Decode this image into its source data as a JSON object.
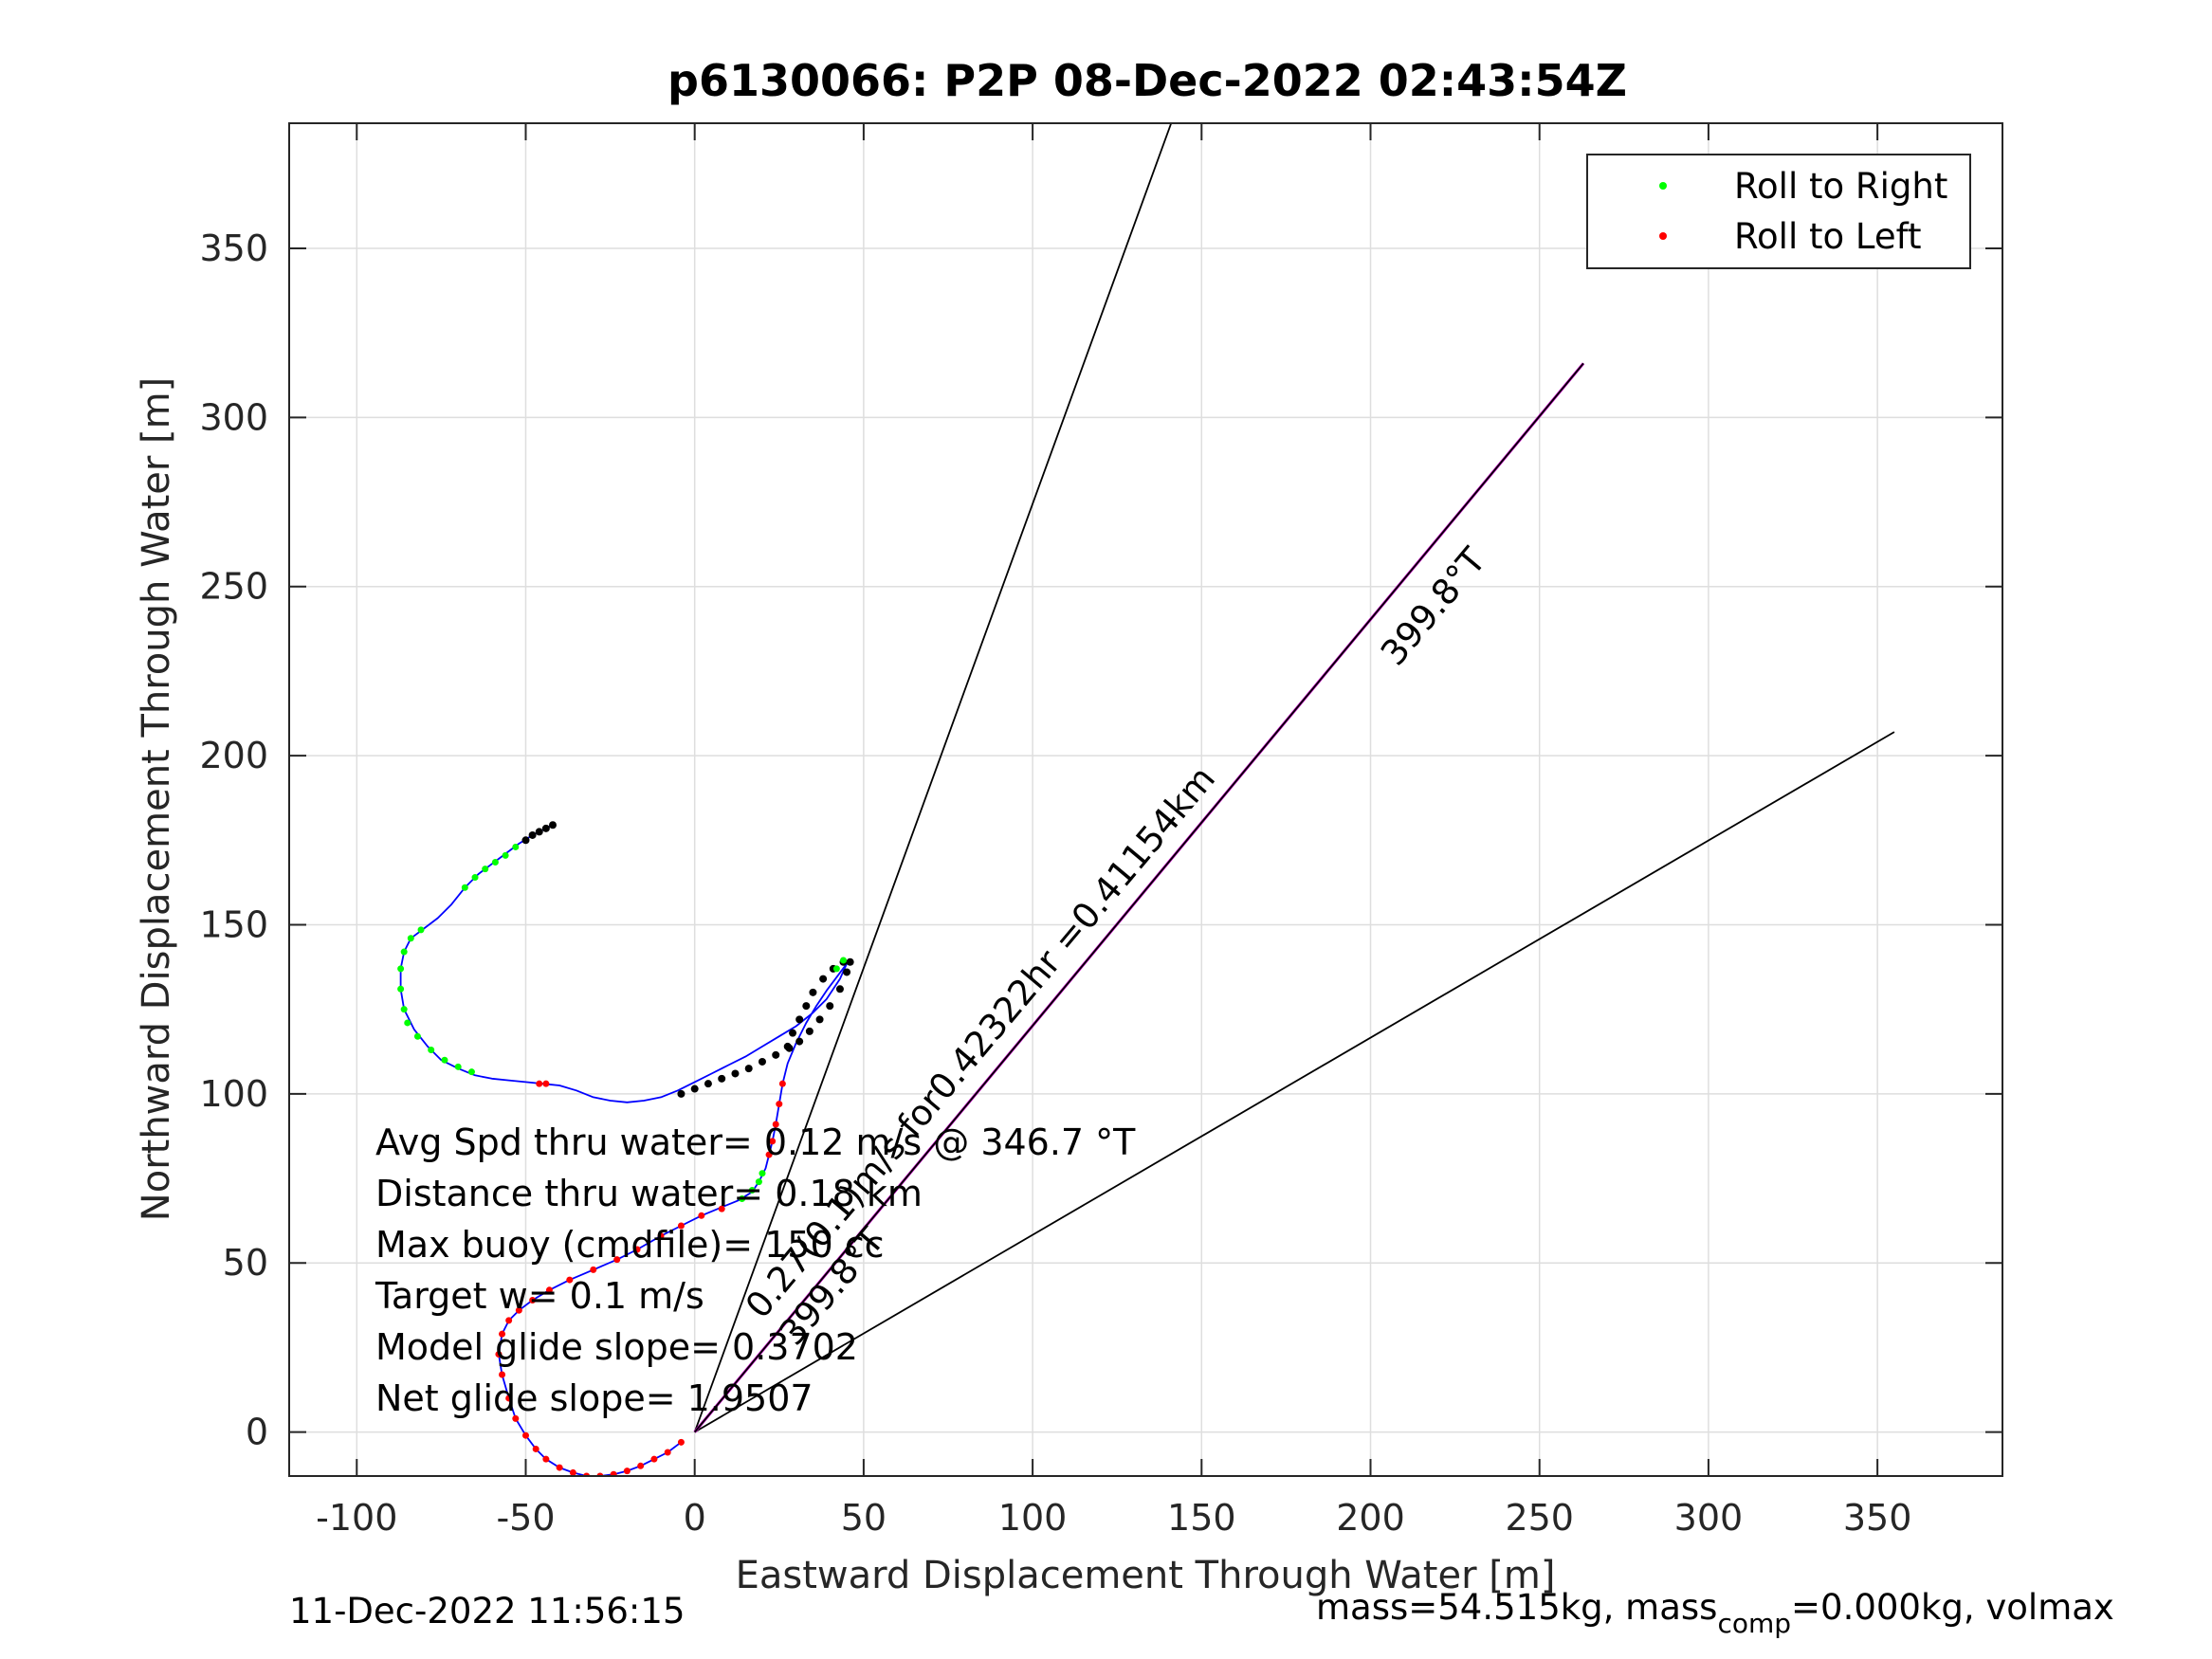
{
  "chart_data": {
    "type": "scatter",
    "title": "p6130066: P2P 08-Dec-2022 02:43:54Z",
    "xlabel": "Eastward Displacement Through Water [m]",
    "ylabel": "Northward Displacement Through Water [m]",
    "xlim": [
      -120,
      387
    ],
    "ylim": [
      -13,
      387
    ],
    "xticks": [
      -100,
      -50,
      0,
      50,
      100,
      150,
      200,
      250,
      300,
      350
    ],
    "yticks": [
      0,
      50,
      100,
      150,
      200,
      250,
      300,
      350
    ],
    "grid": true,
    "legend_position": "top-right",
    "legend": [
      {
        "label": "Roll to Right",
        "color": "#00ff00"
      },
      {
        "label": "Roll to Left",
        "color": "#ff0000"
      }
    ],
    "track_color": "#0000ff",
    "track": [
      [
        -4,
        -3
      ],
      [
        -8,
        -6
      ],
      [
        -12,
        -8
      ],
      [
        -16,
        -10
      ],
      [
        -20,
        -11.5
      ],
      [
        -24,
        -12.5
      ],
      [
        -28,
        -13
      ],
      [
        -32,
        -13
      ],
      [
        -36,
        -12
      ],
      [
        -40,
        -10.5
      ],
      [
        -44,
        -8
      ],
      [
        -47,
        -5
      ],
      [
        -50,
        -1
      ],
      [
        -53,
        4
      ],
      [
        -55,
        10
      ],
      [
        -57,
        17
      ],
      [
        -58,
        23
      ],
      [
        -57,
        29
      ],
      [
        -55,
        33
      ],
      [
        -52,
        36
      ],
      [
        -48,
        39
      ],
      [
        -43,
        42
      ],
      [
        -37,
        45
      ],
      [
        -30,
        48
      ],
      [
        -23,
        51
      ],
      [
        -17,
        54
      ],
      [
        -10,
        58
      ],
      [
        -4,
        61
      ],
      [
        2,
        64
      ],
      [
        8,
        66.5
      ],
      [
        13,
        68.5
      ],
      [
        17,
        71
      ],
      [
        19,
        74
      ],
      [
        21,
        78
      ],
      [
        22,
        82
      ],
      [
        23,
        86
      ],
      [
        24,
        91
      ],
      [
        25,
        97
      ],
      [
        26,
        103
      ],
      [
        27.5,
        109
      ],
      [
        30,
        115
      ],
      [
        33,
        121
      ],
      [
        36,
        126
      ],
      [
        39,
        130.5
      ],
      [
        42,
        134.5
      ],
      [
        45,
        138.5
      ],
      [
        43,
        134
      ],
      [
        39,
        128
      ],
      [
        35,
        124
      ],
      [
        30,
        120
      ],
      [
        25,
        117
      ],
      [
        20,
        114
      ],
      [
        15,
        111
      ],
      [
        10,
        108.5
      ],
      [
        5,
        106
      ],
      [
        0,
        103.5
      ],
      [
        -5,
        101
      ],
      [
        -10,
        99
      ],
      [
        -15,
        98
      ],
      [
        -20,
        97.5
      ],
      [
        -25,
        98
      ],
      [
        -30,
        99
      ],
      [
        -35,
        101
      ],
      [
        -40,
        102.5
      ],
      [
        -45,
        103
      ],
      [
        -50,
        103.5
      ],
      [
        -55,
        104
      ],
      [
        -60,
        104.5
      ],
      [
        -65,
        105.5
      ],
      [
        -70,
        107.5
      ],
      [
        -75,
        110
      ],
      [
        -79,
        114
      ],
      [
        -83,
        119
      ],
      [
        -86,
        125
      ],
      [
        -87,
        131
      ],
      [
        -87,
        137
      ],
      [
        -86,
        142
      ],
      [
        -84,
        146
      ],
      [
        -80,
        149
      ],
      [
        -76,
        152
      ],
      [
        -72,
        156
      ],
      [
        -68,
        161
      ],
      [
        -64,
        165
      ],
      [
        -60,
        168
      ],
      [
        -56,
        171
      ],
      [
        -52,
        174
      ],
      [
        -48,
        176.5
      ],
      [
        -45,
        178
      ],
      [
        -42,
        179.5
      ]
    ],
    "black_points": [
      [
        -42,
        179.5
      ],
      [
        -44,
        178.5
      ],
      [
        -46,
        177.5
      ],
      [
        -48,
        176.5
      ],
      [
        -50,
        175
      ],
      [
        -4,
        100
      ],
      [
        0,
        101.5
      ],
      [
        4,
        103
      ],
      [
        8,
        104.5
      ],
      [
        12,
        106
      ],
      [
        16,
        107.5
      ],
      [
        20,
        109.5
      ],
      [
        24,
        111.5
      ],
      [
        28,
        113.5
      ],
      [
        31,
        115.5
      ],
      [
        34,
        118.5
      ],
      [
        37,
        122
      ],
      [
        40,
        126
      ],
      [
        43,
        131
      ],
      [
        45,
        136
      ],
      [
        46,
        139
      ],
      [
        44,
        139
      ],
      [
        41,
        137
      ],
      [
        38,
        134
      ],
      [
        35,
        130
      ],
      [
        33,
        126
      ],
      [
        31,
        122
      ],
      [
        29,
        118
      ],
      [
        27.5,
        114
      ]
    ],
    "green_points": [
      [
        -86,
        125
      ],
      [
        -87,
        131
      ],
      [
        -87,
        137
      ],
      [
        -86,
        142
      ],
      [
        -84,
        146
      ],
      [
        -81,
        148.5
      ],
      [
        -85,
        121
      ],
      [
        -82,
        117
      ],
      [
        -78,
        113
      ],
      [
        -74,
        110
      ],
      [
        -70,
        108
      ],
      [
        -66,
        106.5
      ],
      [
        -68,
        161
      ],
      [
        -65,
        164
      ],
      [
        -62,
        166.5
      ],
      [
        -59,
        168.5
      ],
      [
        -56,
        170.5
      ],
      [
        -53,
        173
      ],
      [
        14,
        69
      ],
      [
        17,
        71.5
      ],
      [
        19,
        74
      ],
      [
        20,
        76.5
      ],
      [
        44,
        139.5
      ],
      [
        42,
        137
      ]
    ],
    "red_points": [
      [
        -4,
        -3
      ],
      [
        -8,
        -6
      ],
      [
        -12,
        -8
      ],
      [
        -16,
        -10
      ],
      [
        -20,
        -11.5
      ],
      [
        -24,
        -12.5
      ],
      [
        -28,
        -13
      ],
      [
        -32,
        -13
      ],
      [
        -36,
        -12
      ],
      [
        -40,
        -10.5
      ],
      [
        -44,
        -8
      ],
      [
        -47,
        -5
      ],
      [
        -50,
        -1
      ],
      [
        -53,
        4
      ],
      [
        -55,
        10
      ],
      [
        -57,
        17
      ],
      [
        -58,
        23
      ],
      [
        -57,
        29
      ],
      [
        -55,
        33
      ],
      [
        -52,
        36
      ],
      [
        -48,
        39
      ],
      [
        -43,
        42
      ],
      [
        -37,
        45
      ],
      [
        -30,
        48
      ],
      [
        -23,
        51
      ],
      [
        -17,
        54
      ],
      [
        -10,
        58
      ],
      [
        -4,
        61
      ],
      [
        2,
        64
      ],
      [
        8,
        66
      ],
      [
        22,
        82
      ],
      [
        23,
        86
      ],
      [
        24,
        91
      ],
      [
        25,
        97
      ],
      [
        26,
        103
      ],
      [
        -46,
        103
      ],
      [
        -44,
        103
      ]
    ],
    "lines": [
      {
        "from": [
          0,
          0
        ],
        "to": [
          141,
          387
        ],
        "color": "#000000"
      },
      {
        "from": [
          0,
          0
        ],
        "to": [
          355,
          207
        ],
        "color": "#000000"
      },
      {
        "from": [
          0,
          0
        ],
        "to": [
          263,
          316
        ],
        "color": "#cc00cc"
      },
      {
        "from": [
          0,
          0
        ],
        "to": [
          263,
          316
        ],
        "color": "#000000"
      }
    ],
    "annotations": [
      {
        "text": "399.8°T",
        "x": 208,
        "y": 226,
        "rotation": -50
      },
      {
        "text": "0.27(0.1)m/s for0.42322hr =0.41154km",
        "x": 20,
        "y": 33,
        "rotation": -50
      },
      {
        "text": "399.8°T",
        "x": 30,
        "y": 25,
        "rotation": -50
      }
    ],
    "info_lines": [
      "Avg Spd thru water=  0.12 m/s @ 346.7 °T",
      "Distance thru water=  0.18 km",
      "Max buoy (cmdfile)= 150 cc",
      "Target w= 0.1 m/s",
      "Model glide slope= 0.3702",
      "Net glide slope= 1.9507"
    ]
  },
  "footer": {
    "timestamp": "11-Dec-2022 11:56:15",
    "mass_prefix": "mass=54.515kg, mass",
    "mass_sub": "comp",
    "mass_suffix": "=0.000kg, volmax"
  }
}
